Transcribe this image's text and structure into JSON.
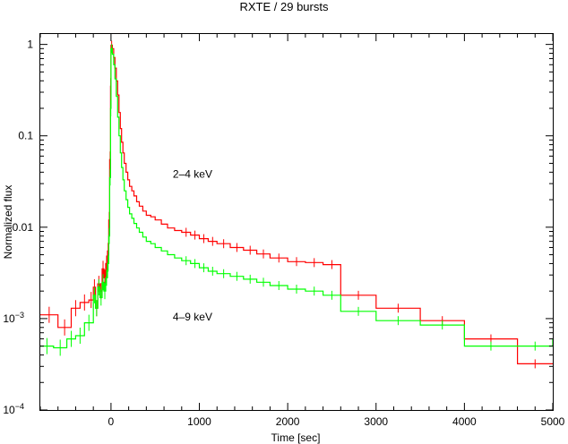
{
  "chart_data": {
    "type": "line",
    "title": "RXTE / 29 bursts",
    "xlabel": "Time [sec]",
    "ylabel": "Normalized flux",
    "xlim": [
      -800,
      5000
    ],
    "ylim": [
      0.0001,
      1.3
    ],
    "yscale": "log",
    "grid": false,
    "x_ticks": [
      {
        "value": 0,
        "label": "0"
      },
      {
        "value": 1000,
        "label": "1000"
      },
      {
        "value": 2000,
        "label": "2000"
      },
      {
        "value": 3000,
        "label": "3000"
      },
      {
        "value": 4000,
        "label": "4000"
      },
      {
        "value": 5000,
        "label": "5000"
      }
    ],
    "y_ticks": [
      {
        "value": 1,
        "label": "1",
        "exp": ""
      },
      {
        "value": 0.1,
        "label": "0.1",
        "exp": ""
      },
      {
        "value": 0.01,
        "label": "0.01",
        "exp": ""
      },
      {
        "value": 0.001,
        "label": "10",
        "exp": "−3"
      },
      {
        "value": 0.0001,
        "label": "10",
        "exp": "−4"
      }
    ],
    "annotations": [
      {
        "text": "2–4 keV",
        "x": 700,
        "y": 0.035
      },
      {
        "text": "4–9 keV",
        "x": 700,
        "y": 0.00095
      }
    ],
    "series": [
      {
        "color": "#ff0000",
        "x": [
          -800,
          -600,
          -450,
          -350,
          -250,
          -200,
          -175,
          -150,
          -125,
          -100,
          -80,
          -60,
          -40,
          -25,
          -15,
          -5,
          0,
          15,
          30,
          45,
          60,
          75,
          90,
          105,
          120,
          135,
          150,
          170,
          190,
          210,
          235,
          260,
          290,
          320,
          360,
          400,
          450,
          500,
          570,
          640,
          720,
          800,
          900,
          1000,
          1100,
          1200,
          1350,
          1500,
          1650,
          1800,
          2000,
          2200,
          2400,
          2600,
          3000,
          3500,
          4000,
          4600,
          5000
        ],
        "y": [
          0.0011,
          0.0008,
          0.0013,
          0.0015,
          0.0016,
          0.0022,
          0.0013,
          0.0024,
          0.002,
          0.0035,
          0.0028,
          0.004,
          0.0055,
          0.012,
          0.055,
          0.35,
          0.98,
          0.9,
          0.72,
          0.55,
          0.4,
          0.28,
          0.18,
          0.12,
          0.085,
          0.065,
          0.05,
          0.04,
          0.033,
          0.028,
          0.025,
          0.022,
          0.019,
          0.017,
          0.015,
          0.0135,
          0.013,
          0.012,
          0.0108,
          0.0098,
          0.0092,
          0.0088,
          0.0082,
          0.0075,
          0.007,
          0.0066,
          0.006,
          0.0056,
          0.0051,
          0.0046,
          0.0042,
          0.0041,
          0.0039,
          0.0018,
          0.0013,
          0.00095,
          0.0006,
          0.00032,
          0.00032
        ]
      },
      {
        "color": "#00ff00",
        "x": [
          -800,
          -650,
          -500,
          -400,
          -300,
          -200,
          -175,
          -150,
          -125,
          -100,
          -80,
          -60,
          -40,
          -25,
          -15,
          -5,
          0,
          15,
          30,
          45,
          60,
          75,
          90,
          105,
          120,
          135,
          150,
          170,
          190,
          210,
          235,
          260,
          290,
          320,
          360,
          400,
          450,
          500,
          570,
          640,
          720,
          800,
          900,
          1000,
          1100,
          1200,
          1350,
          1500,
          1650,
          1800,
          2000,
          2200,
          2400,
          2600,
          3000,
          3500,
          4000,
          4600,
          5000
        ],
        "y": [
          0.0005,
          0.00048,
          0.0006,
          0.00065,
          0.0009,
          0.0018,
          0.0013,
          0.0022,
          0.0017,
          0.0025,
          0.002,
          0.0028,
          0.004,
          0.008,
          0.035,
          0.2,
          0.9,
          0.78,
          0.6,
          0.42,
          0.27,
          0.16,
          0.1,
          0.065,
          0.045,
          0.033,
          0.025,
          0.02,
          0.0165,
          0.014,
          0.0125,
          0.011,
          0.0098,
          0.0088,
          0.0078,
          0.007,
          0.0066,
          0.006,
          0.0055,
          0.005,
          0.0046,
          0.0043,
          0.004,
          0.0036,
          0.0033,
          0.0031,
          0.0029,
          0.0027,
          0.0025,
          0.0023,
          0.0021,
          0.002,
          0.0018,
          0.0012,
          0.00095,
          0.00085,
          0.0005,
          0.0005,
          0.0006
        ]
      }
    ]
  }
}
